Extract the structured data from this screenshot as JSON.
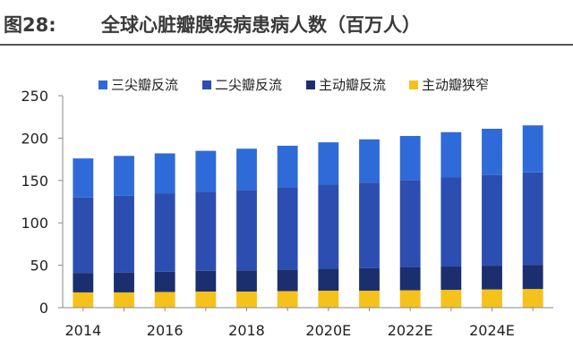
{
  "figure": {
    "label": "图28:",
    "title": "全球心脏瓣膜疾病患病人数（百万人）"
  },
  "chart_data": {
    "type": "bar",
    "stacked": true,
    "categories": [
      "2014",
      "2015",
      "2016",
      "2017",
      "2018",
      "2019",
      "2020E",
      "2021E",
      "2022E",
      "2023E",
      "2024E",
      "2025E"
    ],
    "x_tick_labels": [
      "2014",
      "2016",
      "2018",
      "2020E",
      "2022E",
      "2024E"
    ],
    "ylim": [
      0,
      250
    ],
    "yticks": [
      0,
      50,
      100,
      150,
      200,
      250
    ],
    "grid": false,
    "legend_position": "top",
    "series": [
      {
        "name": "主动瓣狭窄",
        "color": "#f5c21b",
        "values": [
          18,
          18,
          18.5,
          19,
          19,
          19.5,
          20,
          20,
          20.5,
          21,
          21.5,
          22
        ]
      },
      {
        "name": "主动瓣反流",
        "color": "#1b2f6e",
        "values": [
          23,
          23.5,
          24,
          24.5,
          25,
          25.5,
          26,
          26.5,
          27,
          27.5,
          28,
          28.5
        ]
      },
      {
        "name": "二尖瓣反流",
        "color": "#2c4eb0",
        "values": [
          89,
          90.5,
          92,
          93.5,
          95,
          97,
          99,
          101,
          103,
          105,
          107,
          109
        ]
      },
      {
        "name": "三尖瓣反流",
        "color": "#2f6bd8",
        "values": [
          46,
          47,
          47.5,
          48,
          48.5,
          49,
          50,
          51,
          52,
          53.5,
          54.5,
          55.5
        ]
      }
    ],
    "legend_order": [
      "三尖瓣反流",
      "二尖瓣反流",
      "主动瓣反流",
      "主动瓣狭窄"
    ]
  }
}
